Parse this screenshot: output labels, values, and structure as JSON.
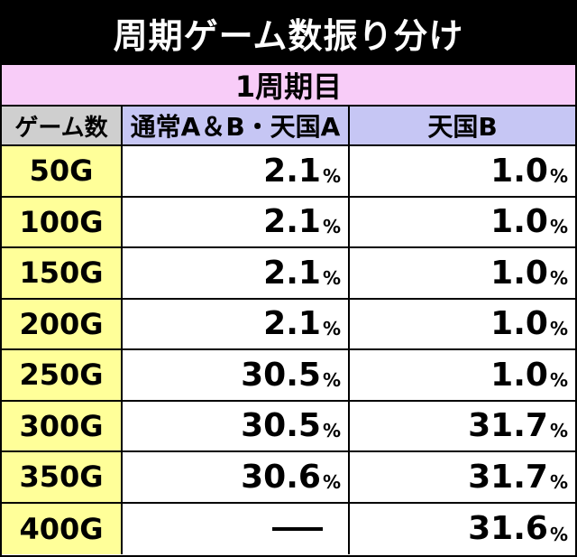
{
  "title": "周期ゲーム数振り分け",
  "cycle": "1周期目",
  "headers": {
    "games": "ゲーム数",
    "col_a": "通常A＆B・天国A",
    "col_b": "天国B"
  },
  "percent_sign": "%",
  "rows": [
    {
      "games": "50G",
      "a": "2.1",
      "b": "1.0"
    },
    {
      "games": "100G",
      "a": "2.1",
      "b": "1.0"
    },
    {
      "games": "150G",
      "a": "2.1",
      "b": "1.0"
    },
    {
      "games": "200G",
      "a": "2.1",
      "b": "1.0"
    },
    {
      "games": "250G",
      "a": "30.5",
      "b": "1.0"
    },
    {
      "games": "300G",
      "a": "30.5",
      "b": "31.7"
    },
    {
      "games": "350G",
      "a": "30.6",
      "b": "31.7"
    },
    {
      "games": "400G",
      "a": null,
      "b": "31.6"
    }
  ]
}
